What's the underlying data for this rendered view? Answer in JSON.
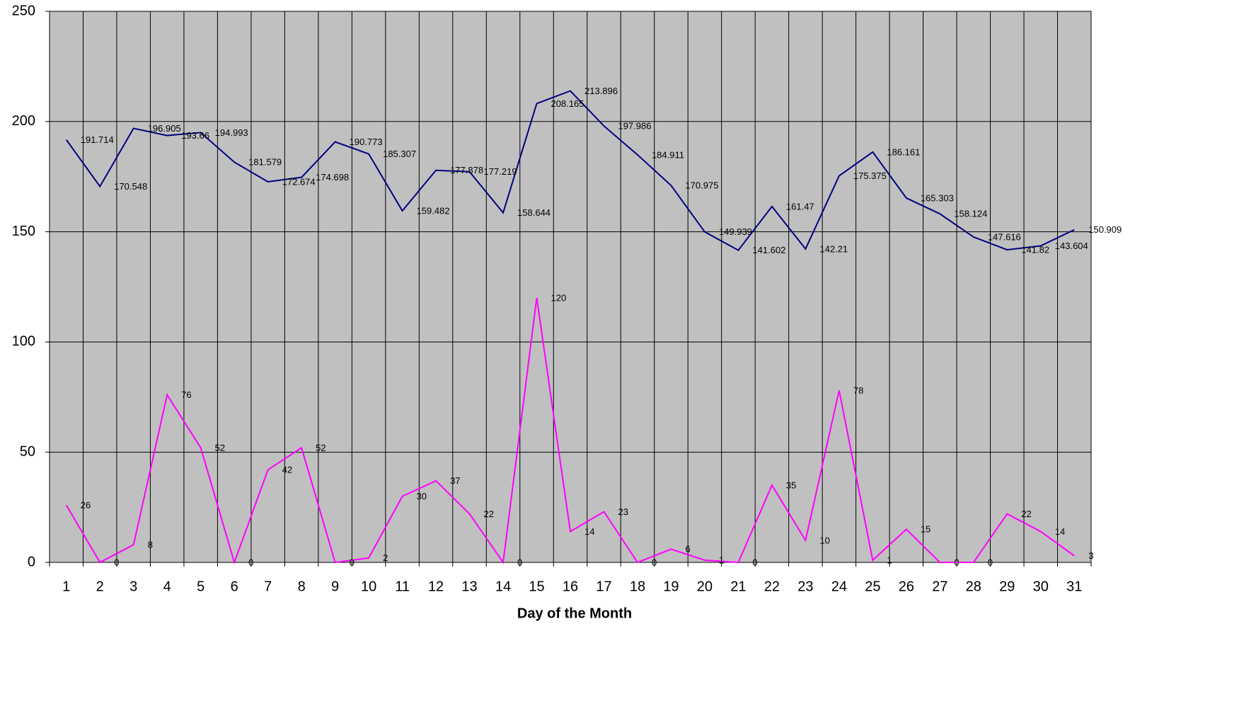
{
  "chart_data": {
    "type": "line",
    "x_label": "Day of the Month",
    "categories": [
      "1",
      "2",
      "3",
      "4",
      "5",
      "6",
      "7",
      "8",
      "9",
      "10",
      "11",
      "12",
      "13",
      "14",
      "15",
      "16",
      "17",
      "18",
      "19",
      "20",
      "21",
      "22",
      "23",
      "24",
      "25",
      "26",
      "27",
      "28",
      "29",
      "30",
      "31"
    ],
    "series": [
      {
        "color": "#000080",
        "values": [
          191.714,
          170.548,
          196.905,
          193.66,
          194.993,
          181.579,
          172.674,
          174.698,
          190.773,
          185.307,
          159.482,
          177.878,
          177.219,
          158.644,
          208.165,
          213.896,
          197.986,
          184.911,
          170.975,
          149.939,
          141.602,
          161.47,
          142.21,
          175.375,
          186.161,
          165.303,
          158.124,
          147.616,
          141.82,
          143.604,
          150.909
        ]
      },
      {
        "color": "#ff00ff",
        "values": [
          26,
          0,
          8,
          76,
          52,
          0,
          42,
          52,
          0,
          2,
          30,
          37,
          22,
          0,
          120,
          14,
          23,
          0,
          6,
          1,
          0,
          35,
          10,
          78,
          1,
          15,
          0,
          0,
          22,
          14,
          3
        ]
      }
    ],
    "ylim": [
      0,
      250
    ],
    "yticks": [
      0,
      50,
      100,
      150,
      200,
      250
    ],
    "grid": true,
    "background": "#c0c0c0",
    "data_labels": true
  }
}
